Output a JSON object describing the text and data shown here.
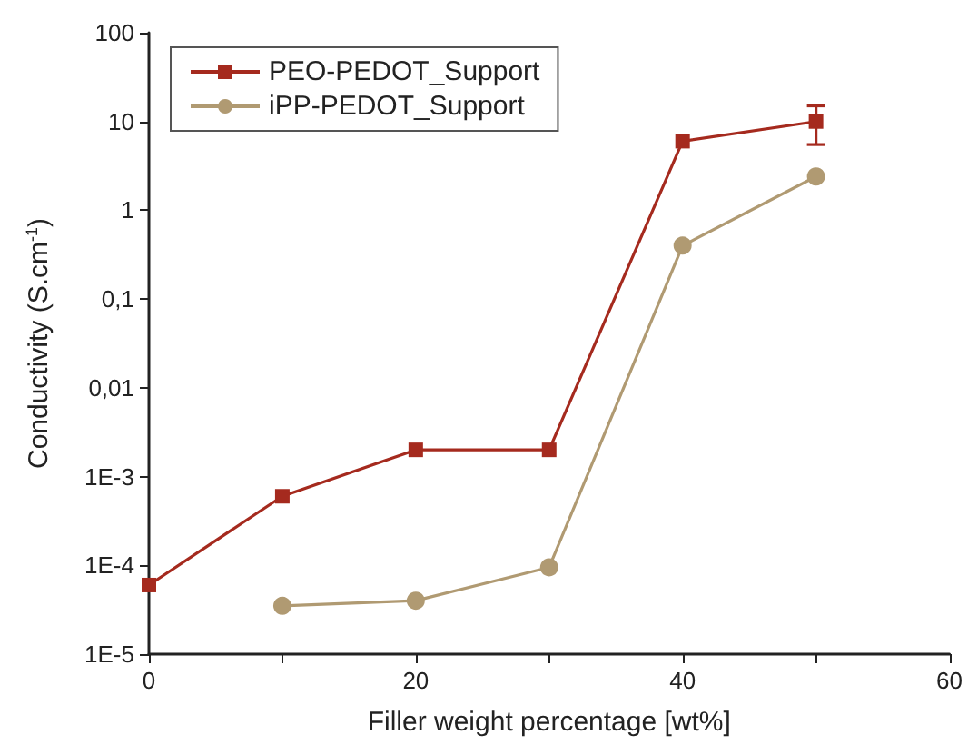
{
  "chart_data": {
    "type": "line",
    "xlabel": "Filler weight percentage [wt%]",
    "ylabel": "Conductivity (S.cm$^{-1}$)",
    "log": "y",
    "xlim": [
      0,
      60
    ],
    "xticks": [
      0,
      {
        "value": 10,
        "label": null
      },
      20,
      {
        "value": 30,
        "label": null
      },
      40,
      {
        "value": 50,
        "label": null
      },
      60
    ],
    "ylim": [
      1e-05,
      100
    ],
    "yticks": [
      {
        "value": 1e-05,
        "label": "1E-5"
      },
      {
        "value": 0.0001,
        "label": "1E-4"
      },
      {
        "value": 0.001,
        "label": "1E-3"
      },
      {
        "value": 0.01,
        "label": "0,01"
      },
      {
        "value": 0.1,
        "label": "0,1"
      },
      1,
      10,
      100
    ],
    "grid": false,
    "legend": "top left",
    "line_style": "solid",
    "series": [
      {
        "name": "PEO-PEDOT_Support",
        "color": "#a52a1e",
        "marker": "square",
        "x": [
          0,
          10,
          20,
          30,
          40,
          50
        ],
        "values": [
          6e-05,
          0.0006,
          0.002,
          0.002,
          6,
          10
        ],
        "errors": [
          null,
          null,
          null,
          null,
          null,
          [
            5.5,
            15
          ]
        ]
      },
      {
        "name": "iPP-PEDOT_Support",
        "color": "#b09a72",
        "marker": "circle",
        "x": [
          10,
          20,
          30,
          40,
          50
        ],
        "values": [
          3.5e-05,
          4e-05,
          9.5e-05,
          0.4,
          2.4
        ]
      }
    ]
  }
}
